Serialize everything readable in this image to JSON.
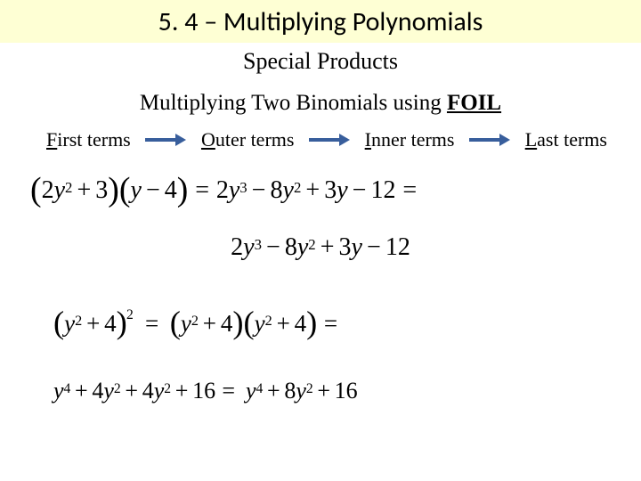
{
  "colors": {
    "title_bg": "#feffd4",
    "subtitle_bg": "#ffffff",
    "arrow": "#385e9c",
    "text": "#000000"
  },
  "title": "5. 4 – Multiplying Polynomials",
  "subtitle": "Special Products",
  "heading": {
    "pre": "Multiplying Two Binomials using ",
    "foil": "FOIL"
  },
  "foil": {
    "items": [
      {
        "u": "F",
        "rest": "irst terms"
      },
      {
        "u": "O",
        "rest": "uter terms"
      },
      {
        "u": "I",
        "rest": "nner terms"
      },
      {
        "u": "L",
        "rest": "ast terms"
      }
    ]
  },
  "eq1": {
    "lhs_a1": "2",
    "lhs_a1v": "y",
    "lhs_a1e": "2",
    "lhs_a2": "3",
    "lhs_b1": "y",
    "lhs_b2": "4",
    "r1c": "2",
    "r1v": "y",
    "r1e": "3",
    "r2c": "8",
    "r2v": "y",
    "r2e": "2",
    "r3c": "3",
    "r3v": "y",
    "r4c": "12"
  },
  "eq2": {
    "t1c": "2",
    "t1v": "y",
    "t1e": "3",
    "t2c": "8",
    "t2v": "y",
    "t2e": "2",
    "t3c": "3",
    "t3v": "y",
    "t4c": "12"
  },
  "eq3": {
    "base_v": "y",
    "base_e": "2",
    "base_c": "4",
    "outer_e": "2"
  },
  "eq4": {
    "l1v": "y",
    "l1e": "4",
    "l2c": "4",
    "l2v": "y",
    "l2e": "2",
    "l3c": "4",
    "l3v": "y",
    "l3e": "2",
    "l4c": "16",
    "r1v": "y",
    "r1e": "4",
    "r2c": "8",
    "r2v": "y",
    "r2e": "2",
    "r3c": "16"
  }
}
